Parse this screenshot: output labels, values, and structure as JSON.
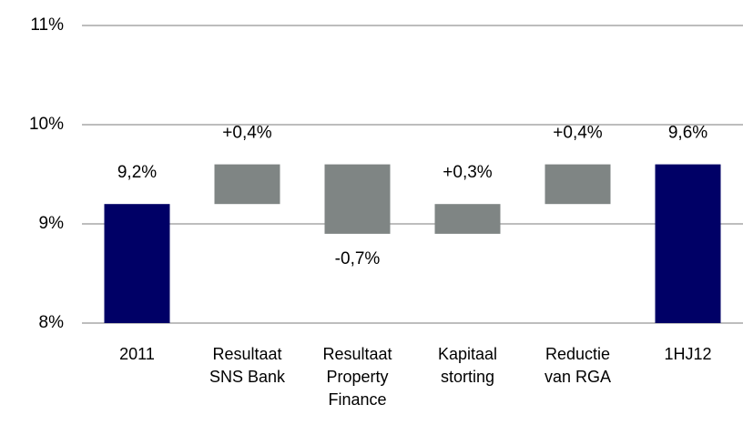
{
  "chart_data": {
    "type": "waterfall",
    "categories": [
      "2011",
      "Resultaat\nSNS Bank",
      "Resultaat\nProperty\nFinance",
      "Kapitaal\nstorting",
      "Reductie\nvan RGA",
      "1HJ12"
    ],
    "values": [
      9.2,
      0.4,
      -0.7,
      0.3,
      0.4,
      9.6
    ],
    "value_labels": [
      "9,2%",
      "+0,4%",
      "-0,7%",
      "+0,3%",
      "+0,4%",
      "9,6%"
    ],
    "measures": [
      "absolute",
      "relative",
      "relative",
      "relative",
      "relative",
      "absolute"
    ],
    "colors": {
      "absolute": "#000066",
      "relative": "#7f8584"
    },
    "ylim": [
      8,
      11
    ],
    "yticks": [
      {
        "value": 8,
        "label": "8%"
      },
      {
        "value": 9,
        "label": "9%"
      },
      {
        "value": 10,
        "label": "10%"
      },
      {
        "value": 11,
        "label": "11%"
      }
    ],
    "grid": true
  }
}
